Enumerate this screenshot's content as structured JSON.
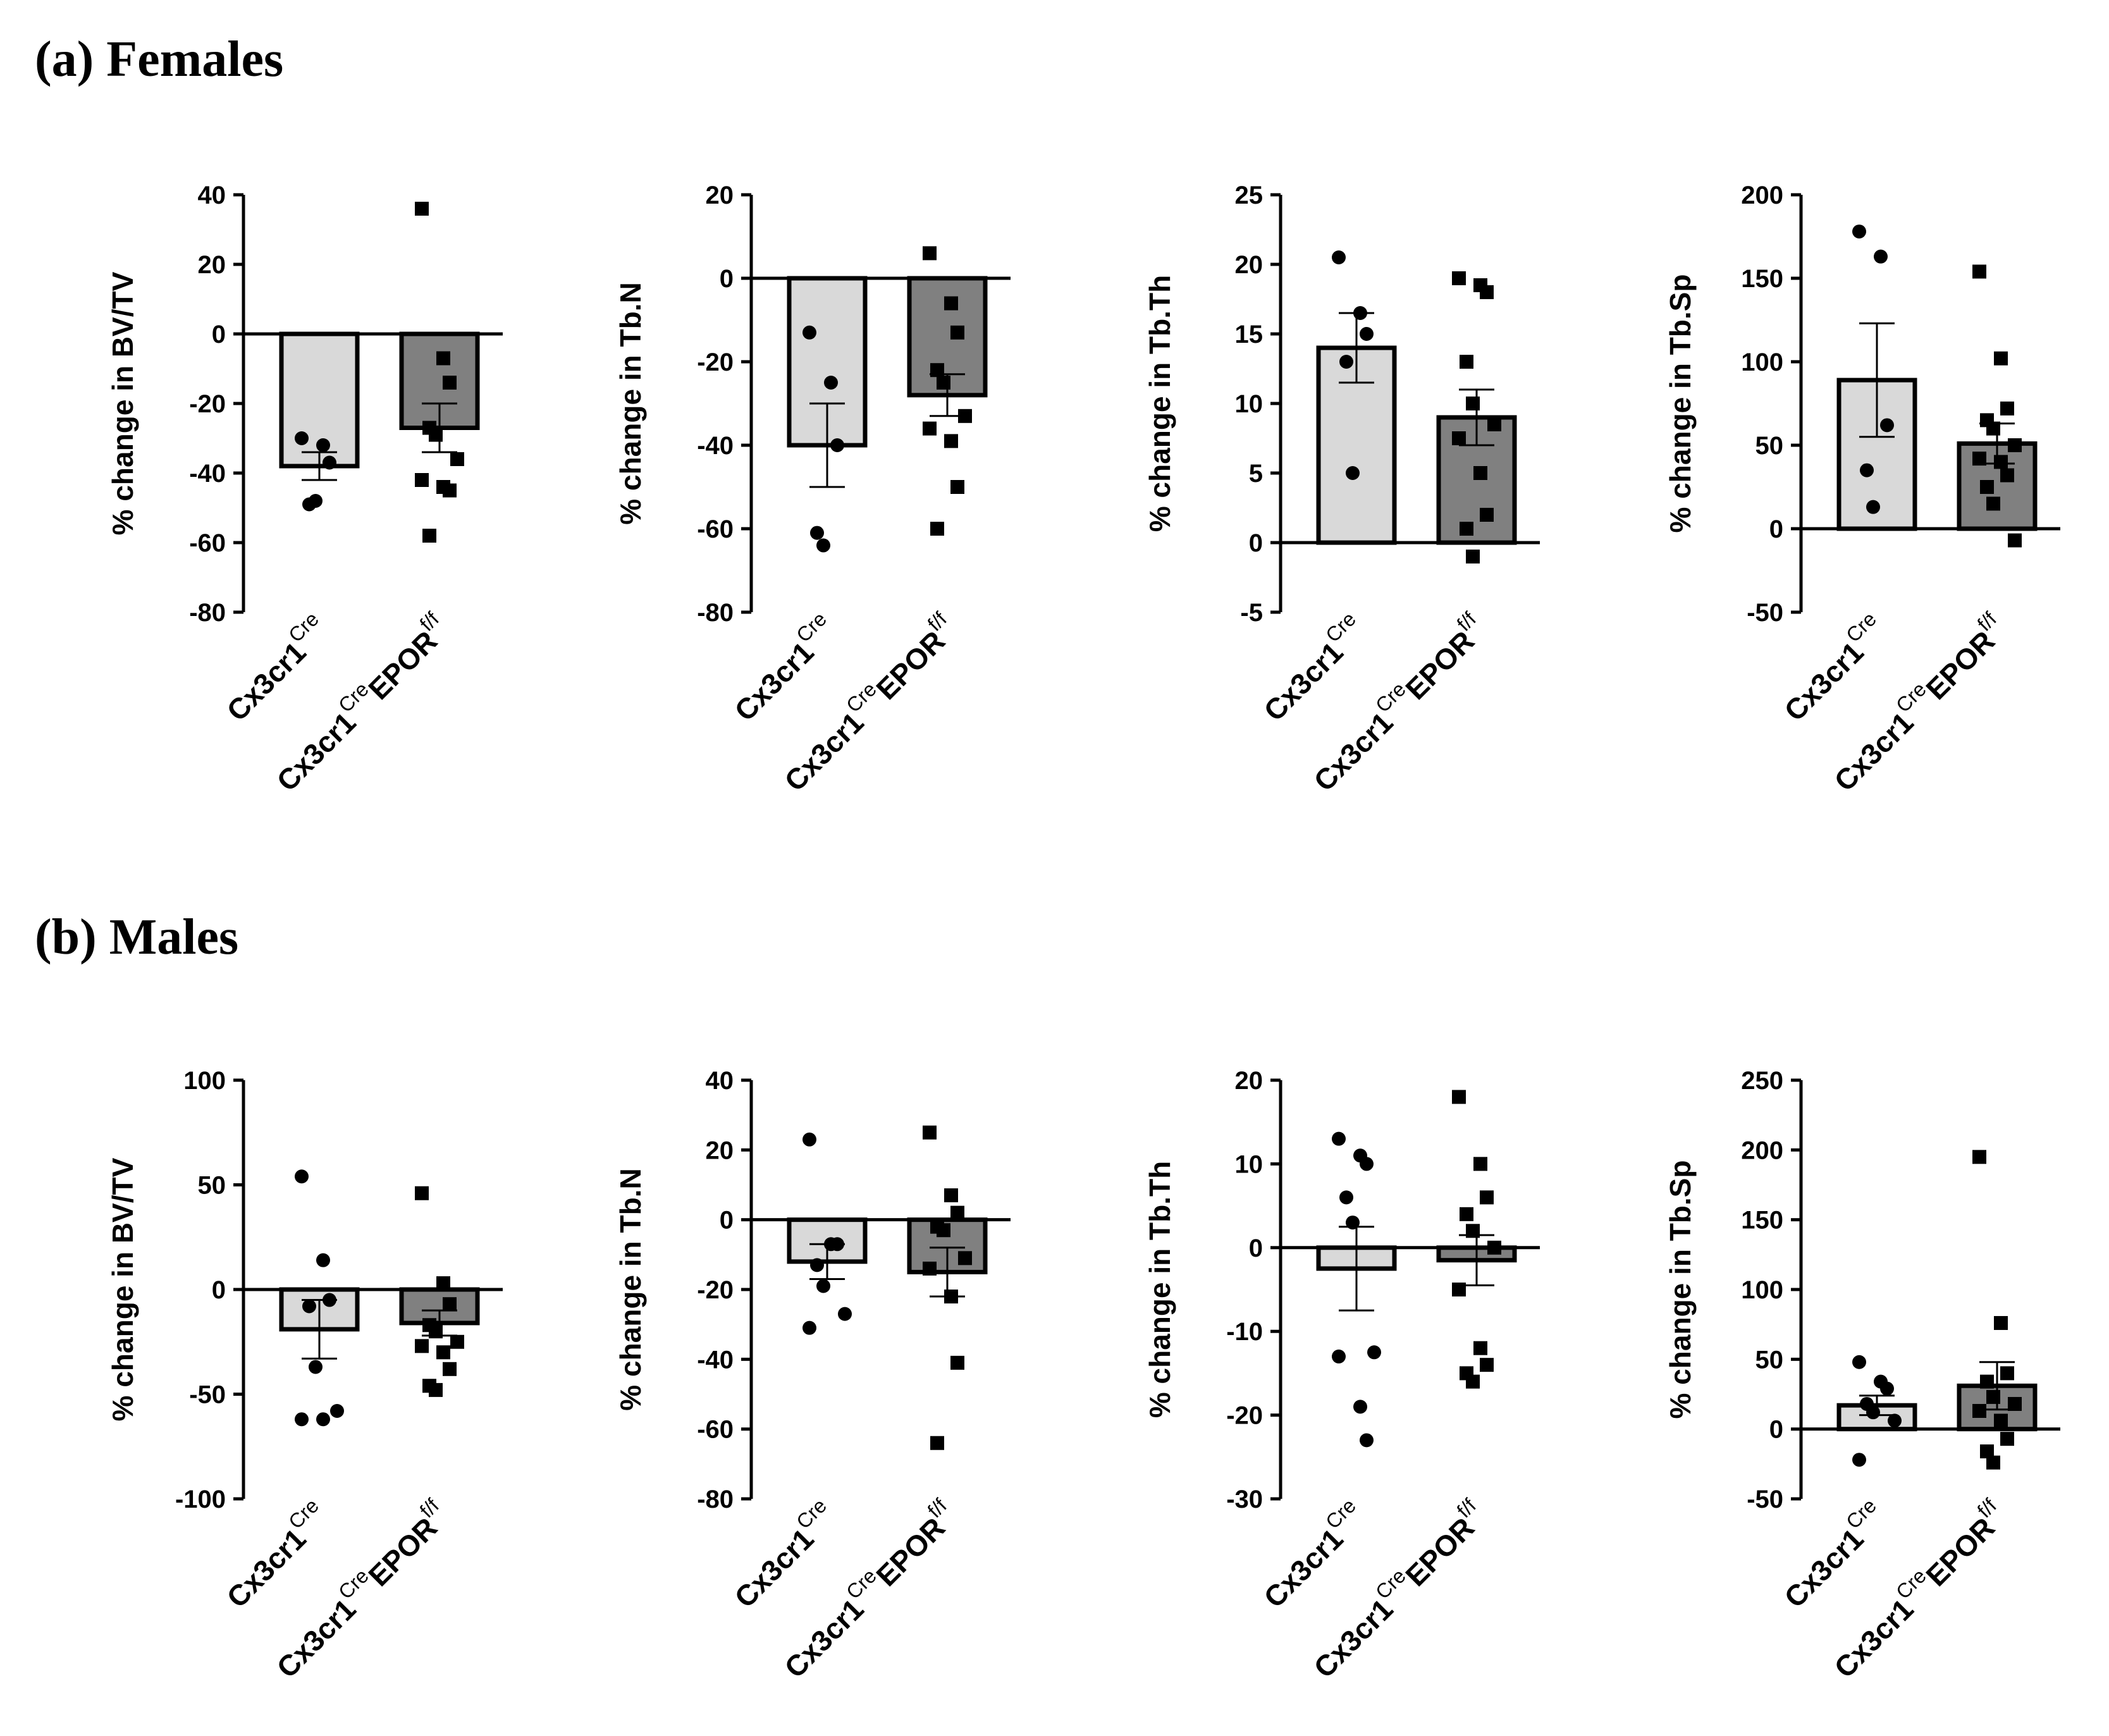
{
  "sections": [
    {
      "label": "(a) Females"
    },
    {
      "label": "(b) Males"
    }
  ],
  "styles": {
    "bar_fills": [
      "#d9d9d9",
      "#808080"
    ],
    "stroke": "#000000",
    "marker_shapes": [
      "circle",
      "square"
    ]
  },
  "chart_data": [
    {
      "type": "bar",
      "panel": "Females",
      "ylabel": "% change in BV/TV",
      "ylim": [
        -80,
        40
      ],
      "yticks": [
        40,
        20,
        0,
        -20,
        -40,
        -60,
        -80
      ],
      "categories": [
        {
          "main": "Cx3cr1",
          "sup": "Cre",
          "tail": "",
          "tail_sup": ""
        },
        {
          "main": "Cx3cr1",
          "sup": "Cre",
          "tail": "EPOR",
          "tail_sup": "f/f"
        }
      ],
      "means": [
        -38,
        -27
      ],
      "sem": [
        4,
        7
      ],
      "points": [
        [
          -30,
          -32,
          -37,
          -49,
          -48
        ],
        [
          36,
          -7,
          -14,
          -27,
          -29,
          -36,
          -42,
          -44,
          -45,
          -58
        ]
      ]
    },
    {
      "type": "bar",
      "panel": "Females",
      "ylabel": "% change in Tb.N",
      "ylim": [
        -80,
        20
      ],
      "yticks": [
        20,
        0,
        -20,
        -40,
        -60,
        -80
      ],
      "categories": [
        {
          "main": "Cx3cr1",
          "sup": "Cre",
          "tail": "",
          "tail_sup": ""
        },
        {
          "main": "Cx3cr1",
          "sup": "Cre",
          "tail": "EPOR",
          "tail_sup": "f/f"
        }
      ],
      "means": [
        -40,
        -28
      ],
      "sem": [
        10,
        5
      ],
      "points": [
        [
          -13,
          -25,
          -40,
          -61,
          -64
        ],
        [
          6,
          -6,
          -13,
          -22,
          -25,
          -33,
          -36,
          -39,
          -50,
          -60
        ]
      ]
    },
    {
      "type": "bar",
      "panel": "Females",
      "ylabel": "% change in Tb.Th",
      "ylim": [
        -5,
        25
      ],
      "yticks": [
        25,
        20,
        15,
        10,
        5,
        0,
        -5
      ],
      "categories": [
        {
          "main": "Cx3cr1",
          "sup": "Cre",
          "tail": "",
          "tail_sup": ""
        },
        {
          "main": "Cx3cr1",
          "sup": "Cre",
          "tail": "EPOR",
          "tail_sup": "f/f"
        }
      ],
      "means": [
        14,
        9
      ],
      "sem": [
        2.5,
        2
      ],
      "points": [
        [
          20.5,
          16.5,
          15,
          13,
          5
        ],
        [
          19,
          18.5,
          18,
          13,
          10,
          8.5,
          7.5,
          5,
          2,
          1,
          -1
        ]
      ]
    },
    {
      "type": "bar",
      "panel": "Females",
      "ylabel": "% change in Tb.Sp",
      "ylim": [
        -50,
        200
      ],
      "yticks": [
        200,
        150,
        100,
        50,
        0,
        -50
      ],
      "categories": [
        {
          "main": "Cx3cr1",
          "sup": "Cre",
          "tail": "",
          "tail_sup": ""
        },
        {
          "main": "Cx3cr1",
          "sup": "Cre",
          "tail": "EPOR",
          "tail_sup": "f/f"
        }
      ],
      "means": [
        89,
        51
      ],
      "sem": [
        34,
        12
      ],
      "points": [
        [
          178,
          163,
          62,
          35,
          13
        ],
        [
          154,
          102,
          72,
          65,
          60,
          50,
          42,
          40,
          32,
          25,
          15,
          -7
        ]
      ]
    },
    {
      "type": "bar",
      "panel": "Males",
      "ylabel": "% change in BV/TV",
      "ylim": [
        -100,
        100
      ],
      "yticks": [
        100,
        50,
        0,
        -50,
        -100
      ],
      "categories": [
        {
          "main": "Cx3cr1",
          "sup": "Cre",
          "tail": "",
          "tail_sup": ""
        },
        {
          "main": "Cx3cr1",
          "sup": "Cre",
          "tail": "EPOR",
          "tail_sup": "f/f"
        }
      ],
      "means": [
        -19,
        -16
      ],
      "sem": [
        14,
        6
      ],
      "points": [
        [
          54,
          14,
          -5,
          -8,
          -37,
          -58,
          -62,
          -62
        ],
        [
          46,
          3,
          -7,
          -17,
          -20,
          -25,
          -27,
          -30,
          -38,
          -46,
          -48
        ]
      ]
    },
    {
      "type": "bar",
      "panel": "Males",
      "ylabel": "% change in Tb.N",
      "ylim": [
        -80,
        40
      ],
      "yticks": [
        40,
        20,
        0,
        -20,
        -40,
        -60,
        -80
      ],
      "categories": [
        {
          "main": "Cx3cr1",
          "sup": "Cre",
          "tail": "",
          "tail_sup": ""
        },
        {
          "main": "Cx3cr1",
          "sup": "Cre",
          "tail": "EPOR",
          "tail_sup": "f/f"
        }
      ],
      "means": [
        -12,
        -15
      ],
      "sem": [
        5,
        7
      ],
      "points": [
        [
          23,
          -7,
          -7,
          -13,
          -19,
          -27,
          -31
        ],
        [
          25,
          7,
          2,
          -2,
          -3,
          -11,
          -14,
          -22,
          -41,
          -64
        ]
      ]
    },
    {
      "type": "bar",
      "panel": "Males",
      "ylabel": "% change in Tb.Th",
      "ylim": [
        -30,
        20
      ],
      "yticks": [
        20,
        10,
        0,
        -10,
        -20,
        -30
      ],
      "categories": [
        {
          "main": "Cx3cr1",
          "sup": "Cre",
          "tail": "",
          "tail_sup": ""
        },
        {
          "main": "Cx3cr1",
          "sup": "Cre",
          "tail": "EPOR",
          "tail_sup": "f/f"
        }
      ],
      "means": [
        -2.5,
        -1.5
      ],
      "sem": [
        5,
        3
      ],
      "points": [
        [
          13,
          11,
          10,
          6,
          3,
          -12.5,
          -13,
          -19,
          -23
        ],
        [
          18,
          10,
          6,
          4,
          2,
          0,
          -5,
          -12,
          -14,
          -15,
          -16
        ]
      ]
    },
    {
      "type": "bar",
      "panel": "Males",
      "ylabel": "% change in Tb.Sp",
      "ylim": [
        -50,
        250
      ],
      "yticks": [
        250,
        200,
        150,
        100,
        50,
        0,
        -50
      ],
      "categories": [
        {
          "main": "Cx3cr1",
          "sup": "Cre",
          "tail": "",
          "tail_sup": ""
        },
        {
          "main": "Cx3cr1",
          "sup": "Cre",
          "tail": "EPOR",
          "tail_sup": "f/f"
        }
      ],
      "means": [
        17,
        31
      ],
      "sem": [
        7,
        17
      ],
      "points": [
        [
          48,
          34,
          29,
          18,
          12,
          6,
          -22
        ],
        [
          195,
          76,
          40,
          34,
          23,
          18,
          13,
          6,
          -7,
          -16,
          -24
        ]
      ]
    }
  ]
}
